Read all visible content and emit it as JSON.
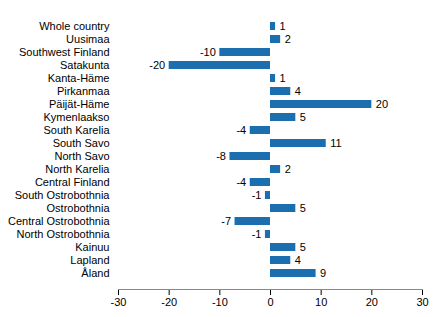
{
  "chart_data": {
    "type": "bar",
    "orientation": "horizontal",
    "categories": [
      "Whole country",
      "Uusimaa",
      "Southwest Finland",
      "Satakunta",
      "Kanta-Häme",
      "Pirkanmaa",
      "Päijät-Häme",
      "Kymenlaakso",
      "South Karelia",
      "South Savo",
      "North Savo",
      "North Karelia",
      "Central Finland",
      "South Ostrobothnia",
      "Ostrobothnia",
      "Central Ostrobothnia",
      "North Ostrobothnia",
      "Kainuu",
      "Lapland",
      "Åland"
    ],
    "values": [
      1,
      2,
      -10,
      -20,
      1,
      4,
      20,
      5,
      -4,
      11,
      -8,
      2,
      -4,
      -1,
      5,
      -7,
      -1,
      5,
      4,
      9
    ],
    "color": "#1b6fae",
    "xlim": [
      -30,
      30
    ],
    "xticks": [
      -30,
      -20,
      -10,
      0,
      10,
      20,
      30
    ],
    "grid": false,
    "data_labels": true
  }
}
